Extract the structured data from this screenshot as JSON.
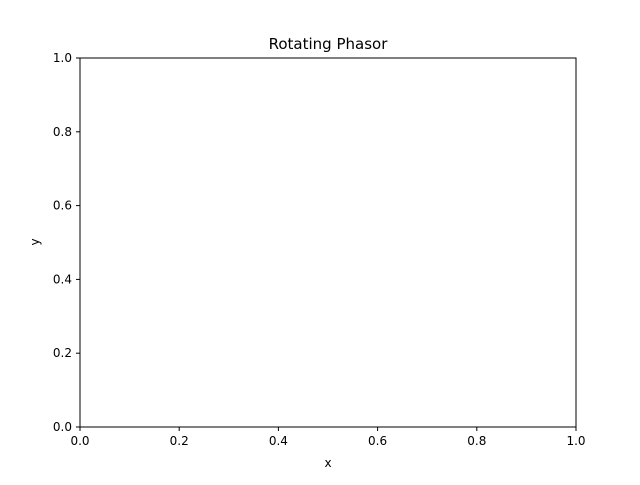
{
  "chart_data": {
    "type": "line",
    "title": "Rotating Phasor",
    "xlabel": "x",
    "ylabel": "y",
    "xlim": [
      0.0,
      1.0
    ],
    "ylim": [
      0.0,
      1.0
    ],
    "x_ticks": [
      {
        "value": 0.0,
        "label": "0.0"
      },
      {
        "value": 0.2,
        "label": "0.2"
      },
      {
        "value": 0.4,
        "label": "0.4"
      },
      {
        "value": 0.6,
        "label": "0.6"
      },
      {
        "value": 0.8,
        "label": "0.8"
      },
      {
        "value": 1.0,
        "label": "1.0"
      }
    ],
    "y_ticks": [
      {
        "value": 0.0,
        "label": "0.0"
      },
      {
        "value": 0.2,
        "label": "0.2"
      },
      {
        "value": 0.4,
        "label": "0.4"
      },
      {
        "value": 0.6,
        "label": "0.6"
      },
      {
        "value": 0.8,
        "label": "0.8"
      },
      {
        "value": 1.0,
        "label": "1.0"
      }
    ],
    "series": [],
    "grid": false,
    "legend": "none",
    "colors": {
      "axes": "#000000",
      "background": "#ffffff"
    }
  }
}
